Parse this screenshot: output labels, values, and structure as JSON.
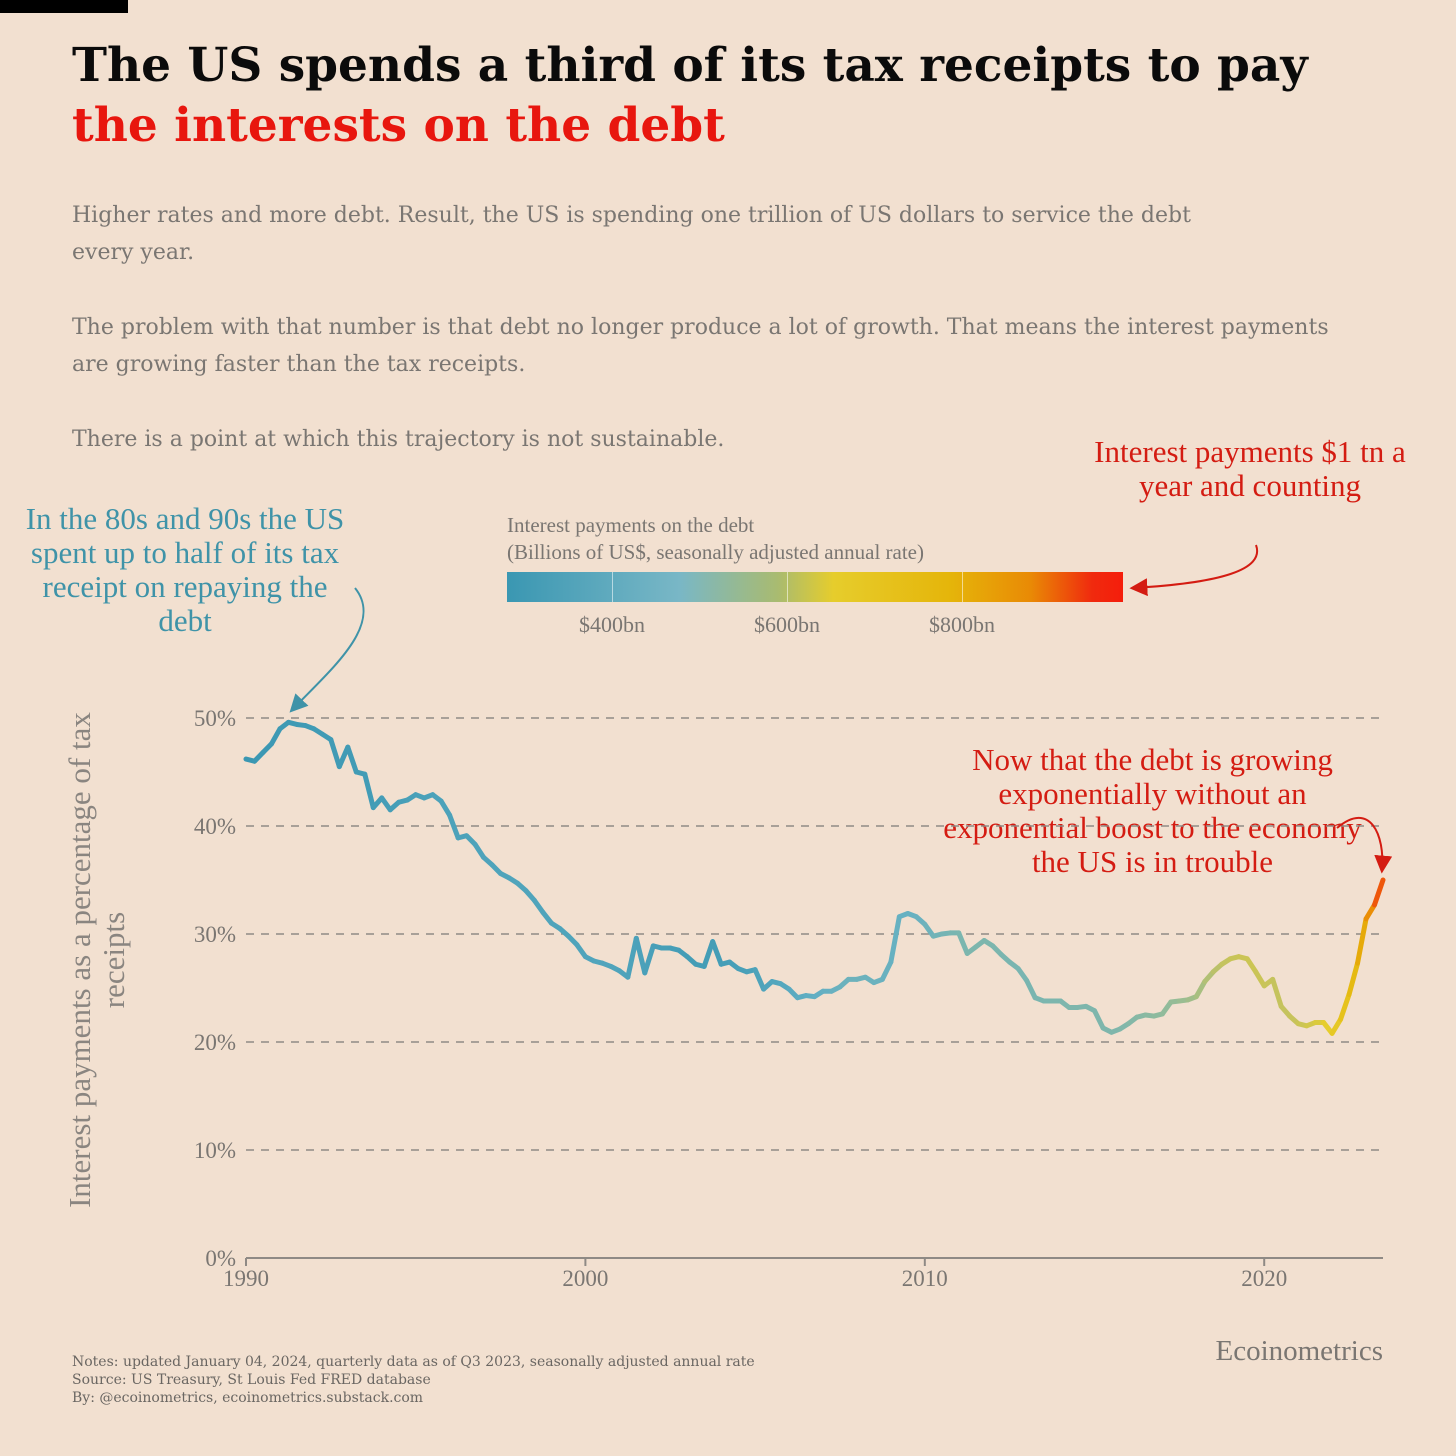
{
  "title": {
    "line1": "The US spends a third of its tax receipts to pay",
    "line2": "the interests on the debt",
    "line2_color": "#e8160e"
  },
  "description": [
    "Higher rates and more debt. Result, the US is spending one trillion of US dollars to service the debt every year.",
    "The problem with that number is that debt no longer produce a lot of growth. That means the interest payments are growing faster than the tax receipts.",
    "There is a point at which this trajectory is not sustainable."
  ],
  "annotations": {
    "left": "In the 80s and 90s the US spent up to half of its tax receipt on repaying the debt",
    "top_right": "Interest payments $1 tn a year and counting",
    "mid_right": "Now that the debt is growing exponentially without an exponential boost to the economy the US is in trouble"
  },
  "legend": {
    "title_line1": "Interest payments on the debt",
    "title_line2": "(Billions of US$, seasonally adjusted annual rate)",
    "ticks": [
      "$400bn",
      "$600bn",
      "$800bn"
    ]
  },
  "colors": {
    "background": "#f2e0d0",
    "gradient": [
      "#3a97b2",
      "#79b7c6",
      "#a9bb70",
      "#e6cd2c",
      "#e5b50a",
      "#e98a05",
      "#f51d0b"
    ],
    "annotation_blue": "#3f93a8",
    "annotation_red": "#d41c12"
  },
  "chart_data": {
    "type": "line",
    "ylabel": "Interest payments as a percentage of tax receipts",
    "ylim": [
      0,
      50
    ],
    "xlim": [
      1990,
      2023.5
    ],
    "yticks": [
      "0%",
      "10%",
      "20%",
      "30%",
      "40%",
      "50%"
    ],
    "xticks": [
      "1990",
      "2000",
      "2010",
      "2020"
    ],
    "grid": "horizontal dashed",
    "color_encoding": "Interest payments on the debt (Billions of US$)",
    "points": [
      [
        1990.0,
        46.2,
        180
      ],
      [
        1990.25,
        46.0,
        182
      ],
      [
        1990.5,
        46.8,
        185
      ],
      [
        1990.75,
        47.6,
        188
      ],
      [
        1991.0,
        49.0,
        192
      ],
      [
        1991.25,
        49.6,
        195
      ],
      [
        1991.5,
        49.4,
        196
      ],
      [
        1991.75,
        49.3,
        197
      ],
      [
        1992.0,
        49.0,
        198
      ],
      [
        1992.25,
        48.5,
        198
      ],
      [
        1992.5,
        48.0,
        199
      ],
      [
        1992.75,
        45.5,
        200
      ],
      [
        1993.0,
        47.3,
        201
      ],
      [
        1993.25,
        45.0,
        202
      ],
      [
        1993.5,
        44.8,
        203
      ],
      [
        1993.75,
        41.7,
        205
      ],
      [
        1994.0,
        42.6,
        208
      ],
      [
        1994.25,
        41.5,
        212
      ],
      [
        1994.5,
        42.2,
        216
      ],
      [
        1994.75,
        42.4,
        220
      ],
      [
        1995.0,
        42.9,
        225
      ],
      [
        1995.25,
        42.6,
        228
      ],
      [
        1995.5,
        42.9,
        230
      ],
      [
        1995.75,
        42.3,
        232
      ],
      [
        1996.0,
        41.0,
        233
      ],
      [
        1996.25,
        38.9,
        234
      ],
      [
        1996.5,
        39.1,
        235
      ],
      [
        1996.75,
        38.3,
        236
      ],
      [
        1997.0,
        37.1,
        238
      ],
      [
        1997.25,
        36.4,
        240
      ],
      [
        1997.5,
        35.6,
        241
      ],
      [
        1997.75,
        35.2,
        242
      ],
      [
        1998.0,
        34.7,
        243
      ],
      [
        1998.25,
        34.0,
        243
      ],
      [
        1998.5,
        33.1,
        243
      ],
      [
        1998.75,
        32.0,
        242
      ],
      [
        1999.0,
        31.0,
        241
      ],
      [
        1999.25,
        30.5,
        240
      ],
      [
        1999.5,
        29.8,
        240
      ],
      [
        1999.75,
        29.0,
        241
      ],
      [
        2000.0,
        27.9,
        243
      ],
      [
        2000.25,
        27.5,
        245
      ],
      [
        2000.5,
        27.3,
        245
      ],
      [
        2000.75,
        27.0,
        244
      ],
      [
        2001.0,
        26.6,
        240
      ],
      [
        2001.25,
        26.0,
        235
      ],
      [
        2001.5,
        29.6,
        232
      ],
      [
        2001.75,
        26.4,
        228
      ],
      [
        2002.0,
        28.9,
        222
      ],
      [
        2002.25,
        28.7,
        218
      ],
      [
        2002.5,
        28.7,
        215
      ],
      [
        2002.75,
        28.5,
        212
      ],
      [
        2003.0,
        27.9,
        210
      ],
      [
        2003.25,
        27.2,
        208
      ],
      [
        2003.5,
        27.0,
        207
      ],
      [
        2003.75,
        29.3,
        208
      ],
      [
        2004.0,
        27.2,
        210
      ],
      [
        2004.25,
        27.4,
        214
      ],
      [
        2004.5,
        26.8,
        220
      ],
      [
        2004.75,
        26.5,
        226
      ],
      [
        2005.0,
        26.7,
        232
      ],
      [
        2005.25,
        24.9,
        240
      ],
      [
        2005.5,
        25.6,
        248
      ],
      [
        2005.75,
        25.4,
        256
      ],
      [
        2006.0,
        24.9,
        265
      ],
      [
        2006.25,
        24.1,
        275
      ],
      [
        2006.5,
        24.3,
        285
      ],
      [
        2006.75,
        24.2,
        293
      ],
      [
        2007.0,
        24.7,
        300
      ],
      [
        2007.25,
        24.7,
        308
      ],
      [
        2007.5,
        25.1,
        315
      ],
      [
        2007.75,
        25.8,
        320
      ],
      [
        2008.0,
        25.8,
        322
      ],
      [
        2008.25,
        26.0,
        320
      ],
      [
        2008.5,
        25.5,
        318
      ],
      [
        2008.75,
        25.8,
        315
      ],
      [
        2009.0,
        27.4,
        310
      ],
      [
        2009.25,
        31.6,
        305
      ],
      [
        2009.5,
        31.9,
        305
      ],
      [
        2009.75,
        31.6,
        310
      ],
      [
        2010.0,
        30.9,
        318
      ],
      [
        2010.25,
        29.8,
        328
      ],
      [
        2010.5,
        30.0,
        338
      ],
      [
        2010.75,
        30.1,
        345
      ],
      [
        2011.0,
        30.1,
        352
      ],
      [
        2011.25,
        28.2,
        358
      ],
      [
        2011.5,
        28.8,
        360
      ],
      [
        2011.75,
        29.4,
        360
      ],
      [
        2012.0,
        28.9,
        358
      ],
      [
        2012.25,
        28.1,
        355
      ],
      [
        2012.5,
        27.4,
        352
      ],
      [
        2012.75,
        26.8,
        350
      ],
      [
        2013.0,
        25.7,
        350
      ],
      [
        2013.25,
        24.1,
        352
      ],
      [
        2013.5,
        23.8,
        355
      ],
      [
        2013.75,
        23.8,
        358
      ],
      [
        2014.0,
        23.8,
        360
      ],
      [
        2014.25,
        23.2,
        362
      ],
      [
        2014.5,
        23.2,
        363
      ],
      [
        2014.75,
        23.3,
        363
      ],
      [
        2015.0,
        22.9,
        363
      ],
      [
        2015.25,
        21.3,
        362
      ],
      [
        2015.5,
        20.9,
        363
      ],
      [
        2015.75,
        21.2,
        366
      ],
      [
        2016.0,
        21.7,
        372
      ],
      [
        2016.25,
        22.3,
        380
      ],
      [
        2016.5,
        22.5,
        388
      ],
      [
        2016.75,
        22.4,
        395
      ],
      [
        2017.0,
        22.6,
        403
      ],
      [
        2017.25,
        23.7,
        412
      ],
      [
        2017.5,
        23.8,
        422
      ],
      [
        2017.75,
        23.9,
        433
      ],
      [
        2018.0,
        24.2,
        448
      ],
      [
        2018.25,
        25.6,
        468
      ],
      [
        2018.5,
        26.5,
        488
      ],
      [
        2018.75,
        27.2,
        508
      ],
      [
        2019.0,
        27.7,
        522
      ],
      [
        2019.25,
        27.9,
        530
      ],
      [
        2019.5,
        27.7,
        533
      ],
      [
        2019.75,
        26.5,
        533
      ],
      [
        2020.0,
        25.2,
        528
      ],
      [
        2020.25,
        25.8,
        520
      ],
      [
        2020.5,
        23.3,
        516
      ],
      [
        2020.75,
        22.4,
        518
      ],
      [
        2021.0,
        21.7,
        525
      ],
      [
        2021.25,
        21.5,
        540
      ],
      [
        2021.5,
        21.8,
        560
      ],
      [
        2021.75,
        21.8,
        585
      ],
      [
        2022.0,
        20.8,
        620
      ],
      [
        2022.25,
        22.1,
        665
      ],
      [
        2022.5,
        24.4,
        720
      ],
      [
        2022.75,
        27.3,
        790
      ],
      [
        2023.0,
        31.4,
        860
      ],
      [
        2023.25,
        32.7,
        920
      ],
      [
        2023.5,
        35.0,
        990
      ]
    ]
  },
  "footer": {
    "notes": "Notes: updated January 04, 2024, quarterly data as of Q3 2023, seasonally adjusted annual rate",
    "source": "Source: US Treasury, St Louis Fed FRED database",
    "by": "By: @ecoinometrics, ecoinometrics.substack.com",
    "brand": "Ecoinometrics"
  }
}
